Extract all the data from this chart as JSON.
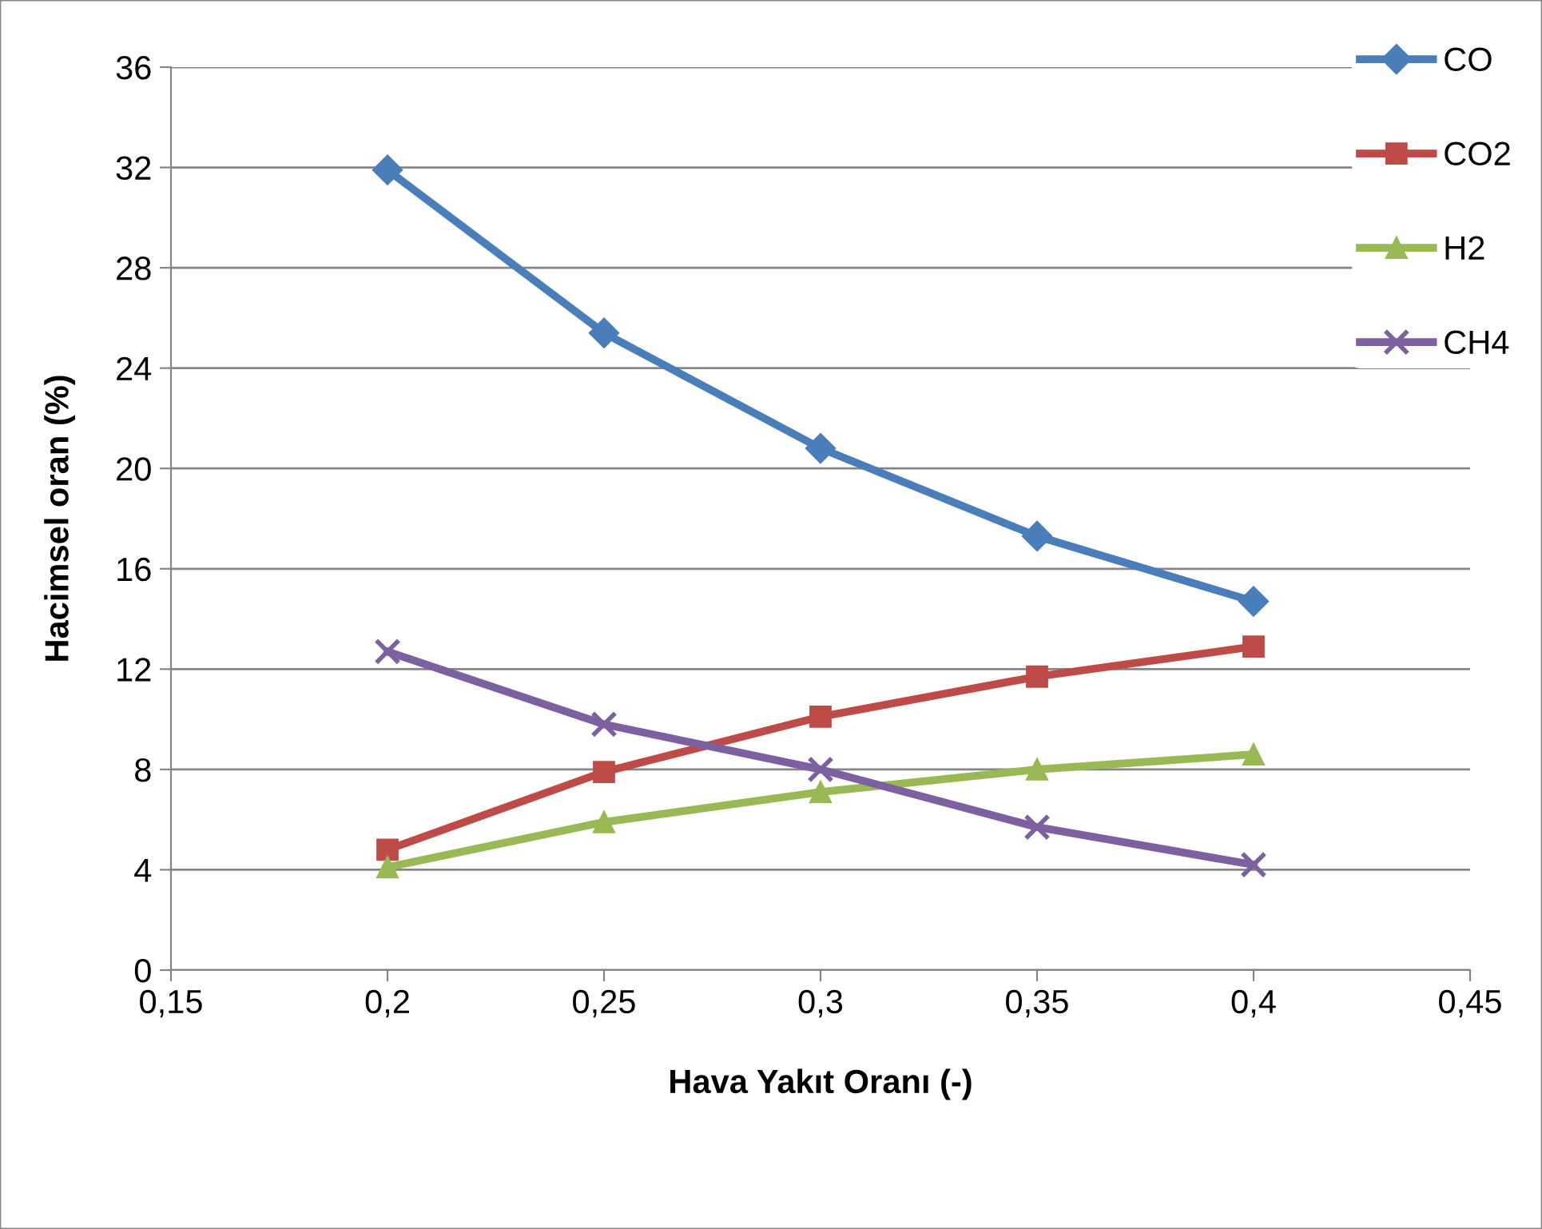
{
  "chart_data": {
    "type": "line",
    "xlabel": "Hava Yakıt Oranı (-)",
    "ylabel": "Hacimsel oran (%)",
    "x": [
      0.2,
      0.25,
      0.3,
      0.35,
      0.4
    ],
    "series": [
      {
        "name": "CO",
        "color": "#4a7ebb",
        "marker": "diamond",
        "values": [
          31.9,
          25.4,
          20.8,
          17.3,
          14.7
        ]
      },
      {
        "name": "CO2",
        "color": "#be4b48",
        "marker": "square",
        "values": [
          4.8,
          7.9,
          10.1,
          11.7,
          12.9
        ]
      },
      {
        "name": "H2",
        "color": "#98b954",
        "marker": "triangle",
        "values": [
          4.1,
          5.9,
          7.1,
          8.0,
          8.6
        ]
      },
      {
        "name": "CH4",
        "color": "#7d60a0",
        "marker": "cross",
        "values": [
          12.7,
          9.8,
          8.0,
          5.7,
          4.2
        ]
      }
    ],
    "xlim": [
      0.15,
      0.45
    ],
    "xticks": [
      {
        "value": 0.15,
        "label": "0,15"
      },
      {
        "value": 0.2,
        "label": "0,2"
      },
      {
        "value": 0.25,
        "label": "0,25"
      },
      {
        "value": 0.3,
        "label": "0,3"
      },
      {
        "value": 0.35,
        "label": "0,35"
      },
      {
        "value": 0.4,
        "label": "0,4"
      },
      {
        "value": 0.45,
        "label": "0,45"
      }
    ],
    "ylim": [
      0,
      36
    ],
    "yticks": [
      0,
      4,
      8,
      12,
      16,
      20,
      24,
      28,
      32,
      36
    ],
    "grid": "y",
    "legend": "top right",
    "line_style": "solid"
  }
}
